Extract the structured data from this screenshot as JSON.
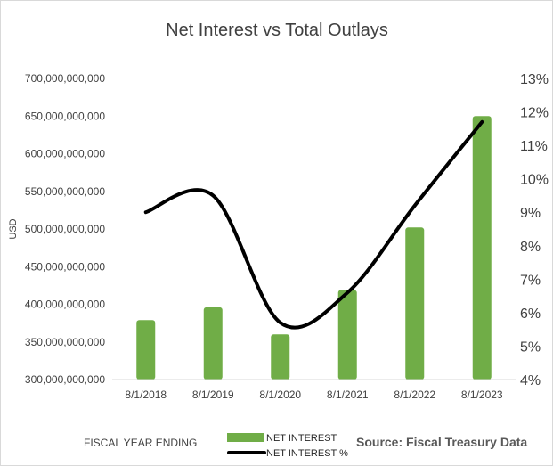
{
  "chart_data": {
    "type": "bar+line",
    "title": "Net Interest vs Total Outlays",
    "categories": [
      "8/1/2018",
      "8/1/2019",
      "8/1/2020",
      "8/1/2021",
      "8/1/2022",
      "8/1/2023"
    ],
    "series": [
      {
        "name": "NET INTEREST",
        "type": "bar",
        "axis": "left",
        "color": "#70ad47",
        "values": [
          379000000000,
          396000000000,
          360000000000,
          419000000000,
          502000000000,
          650000000000
        ]
      },
      {
        "name": "NET INTEREST %",
        "type": "line",
        "axis": "right",
        "color": "#000000",
        "values": [
          0.09,
          0.095,
          0.057,
          0.066,
          0.092,
          0.117
        ]
      }
    ],
    "ylabel": "USD",
    "xlabel": "FISCAL YEAR ENDING",
    "ylim": [
      300000000000,
      700000000000
    ],
    "y_ticks": [
      "300,000,000,000",
      "350,000,000,000",
      "400,000,000,000",
      "450,000,000,000",
      "500,000,000,000",
      "550,000,000,000",
      "600,000,000,000",
      "650,000,000,000",
      "700,000,000,000"
    ],
    "y2lim": [
      0.04,
      0.13
    ],
    "y2_ticks": [
      "4%",
      "5%",
      "6%",
      "7%",
      "8%",
      "9%",
      "10%",
      "11%",
      "12%",
      "13%"
    ],
    "grid": false,
    "legend_position": "bottom-center",
    "annotation": "Source: Fiscal Treasury Data"
  }
}
